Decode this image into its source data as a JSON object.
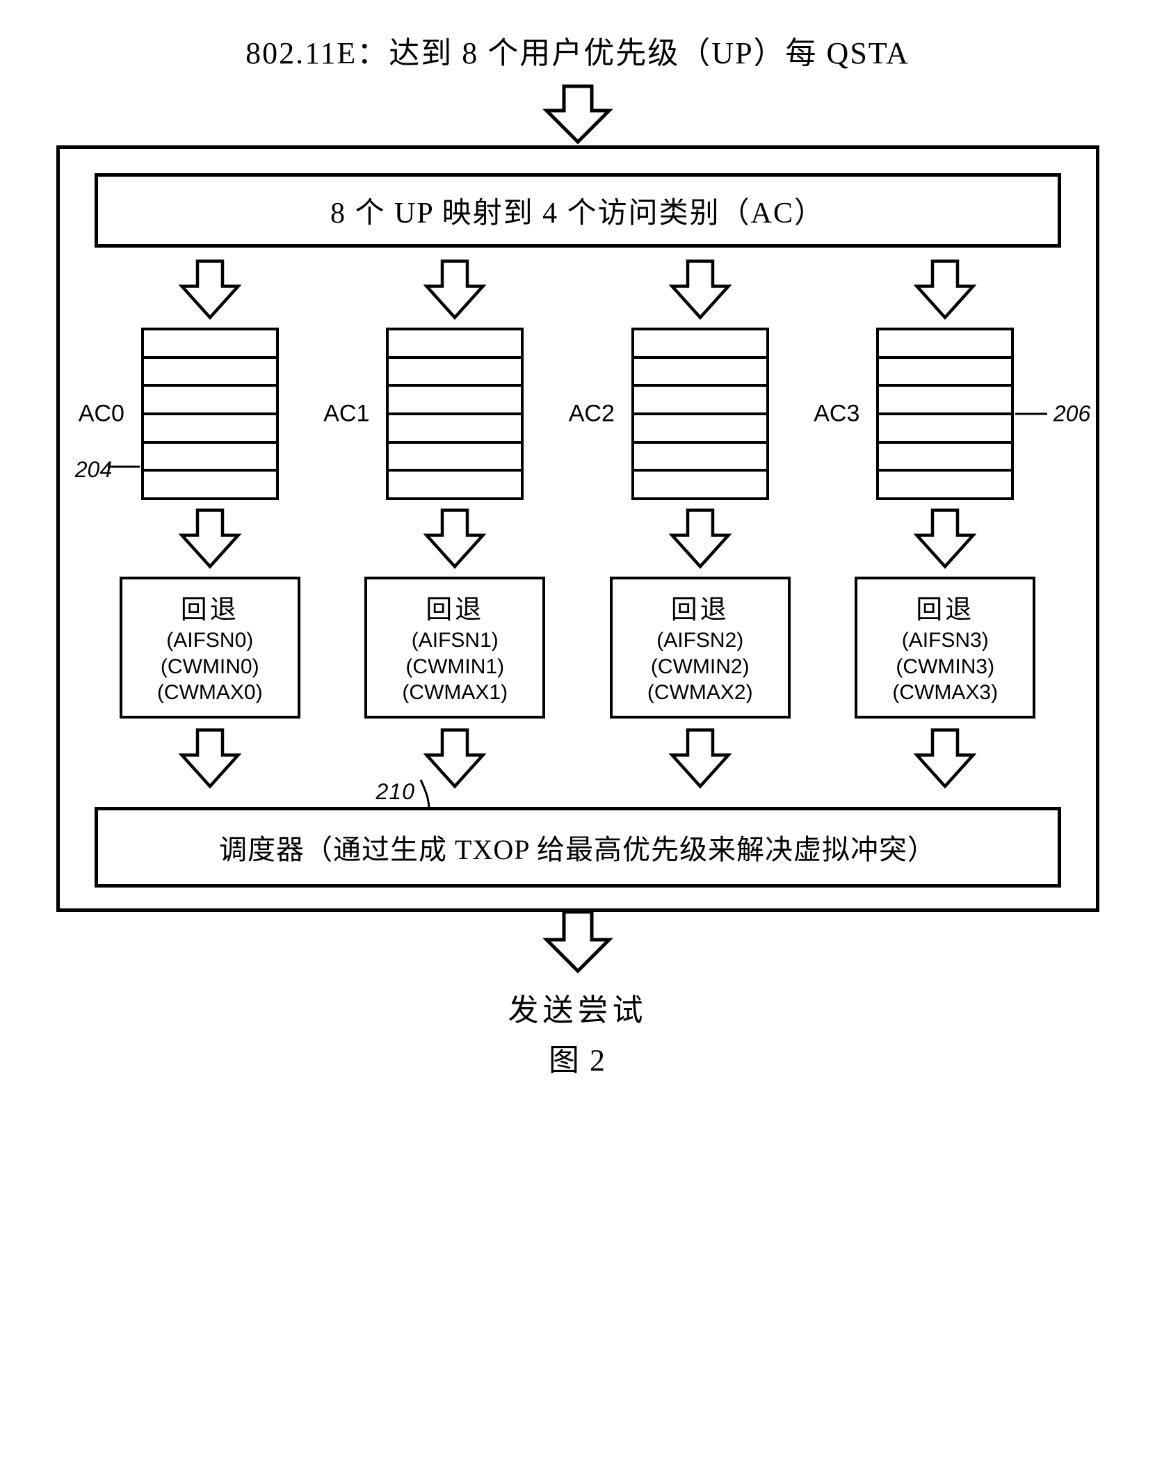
{
  "title": "802.11E：达到 8 个用户优先级（UP）每 QSTA",
  "map_box": "8 个 UP 映射到 4 个访问类别（AC）",
  "columns": [
    {
      "ac_label": "AC0",
      "ref": "204",
      "ref_side": "left",
      "backoff_title": "回退",
      "params": [
        "(AIFSN0)",
        "(CWMIN0)",
        "(CWMAX0)"
      ]
    },
    {
      "ac_label": "AC1",
      "ref": null,
      "backoff_title": "回退",
      "params": [
        "(AIFSN1)",
        "(CWMIN1)",
        "(CWMAX1)"
      ]
    },
    {
      "ac_label": "AC2",
      "ref": null,
      "backoff_title": "回退",
      "params": [
        "(AIFSN2)",
        "(CWMIN2)",
        "(CWMAX2)"
      ]
    },
    {
      "ac_label": "AC3",
      "ref": "206",
      "ref_side": "right",
      "backoff_title": "回退",
      "params": [
        "(AIFSN3)",
        "(CWMIN3)",
        "(CWMAX3)"
      ]
    }
  ],
  "scheduler_ref": "210",
  "scheduler_text": "调度器（通过生成 TXOP 给最高优先级来解决虚拟冲突）",
  "bottom_text": "发送尝试",
  "figure_caption": "图 2",
  "queue_slots": 6,
  "arrow": {
    "big_w": 100,
    "big_h": 85,
    "mid_w": 90,
    "mid_h": 80,
    "stroke": "#000",
    "stroke_w": 4,
    "fill": "#fff"
  }
}
